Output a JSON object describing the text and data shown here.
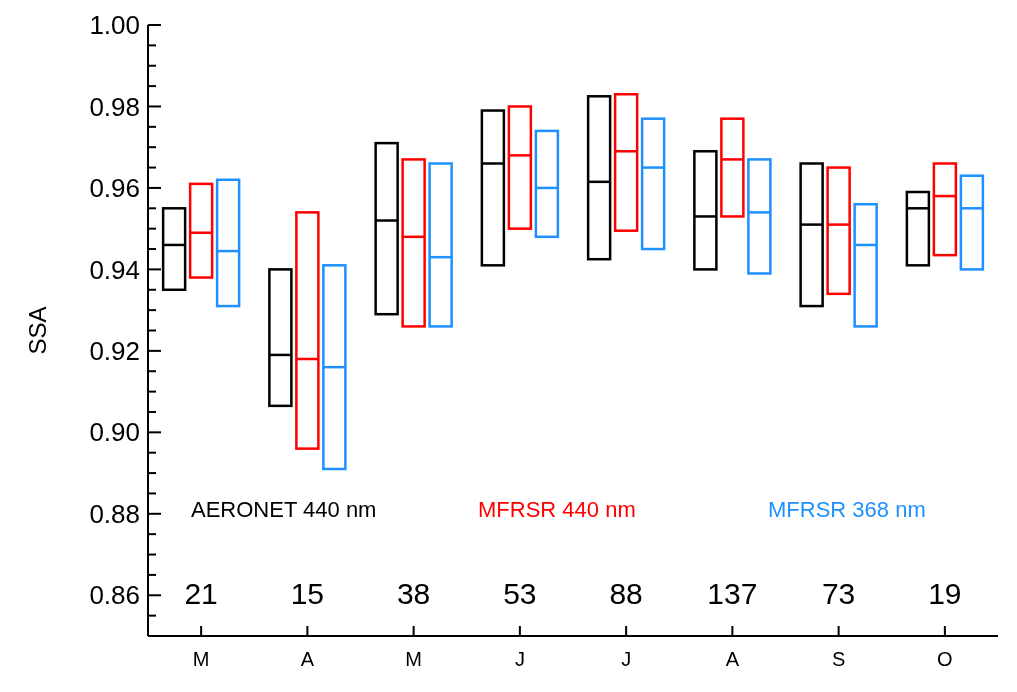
{
  "chart_data": {
    "type": "box",
    "ylabel": "SSA",
    "categories": [
      "M",
      "A",
      "M",
      "J",
      "J",
      "A",
      "S",
      "O"
    ],
    "ylim": [
      0.85,
      1.0
    ],
    "yticks": [
      {
        "value": 0.855,
        "label": null
      },
      {
        "value": 0.86,
        "label": "0.86"
      },
      {
        "value": 0.865,
        "label": null
      },
      {
        "value": 0.87,
        "label": null
      },
      {
        "value": 0.875,
        "label": null
      },
      {
        "value": 0.88,
        "label": "0.88"
      },
      {
        "value": 0.885,
        "label": null
      },
      {
        "value": 0.89,
        "label": null
      },
      {
        "value": 0.895,
        "label": null
      },
      {
        "value": 0.9,
        "label": "0.90"
      },
      {
        "value": 0.905,
        "label": null
      },
      {
        "value": 0.91,
        "label": null
      },
      {
        "value": 0.915,
        "label": null
      },
      {
        "value": 0.92,
        "label": "0.92"
      },
      {
        "value": 0.925,
        "label": null
      },
      {
        "value": 0.93,
        "label": null
      },
      {
        "value": 0.935,
        "label": null
      },
      {
        "value": 0.94,
        "label": "0.94"
      },
      {
        "value": 0.945,
        "label": null
      },
      {
        "value": 0.95,
        "label": null
      },
      {
        "value": 0.955,
        "label": null
      },
      {
        "value": 0.96,
        "label": "0.96"
      },
      {
        "value": 0.965,
        "label": null
      },
      {
        "value": 0.97,
        "label": null
      },
      {
        "value": 0.975,
        "label": null
      },
      {
        "value": 0.98,
        "label": "0.98"
      },
      {
        "value": 0.985,
        "label": null
      },
      {
        "value": 0.99,
        "label": null
      },
      {
        "value": 0.995,
        "label": null
      },
      {
        "value": 1.0,
        "label": "1.00"
      }
    ],
    "legend": "bottom",
    "series": [
      {
        "name": "AERONET 440 nm",
        "color": "#000000",
        "boxes": [
          {
            "low": 0.935,
            "q1": 0.935,
            "median": 0.946,
            "q3": 0.955,
            "high": 0.955
          },
          {
            "low": 0.9065,
            "q1": 0.9065,
            "median": 0.919,
            "q3": 0.94,
            "high": 0.94
          },
          {
            "low": 0.929,
            "q1": 0.929,
            "median": 0.952,
            "q3": 0.971,
            "high": 0.971
          },
          {
            "low": 0.941,
            "q1": 0.941,
            "median": 0.966,
            "q3": 0.979,
            "high": 0.979
          },
          {
            "low": 0.9425,
            "q1": 0.9425,
            "median": 0.9615,
            "q3": 0.9825,
            "high": 0.9825
          },
          {
            "low": 0.94,
            "q1": 0.94,
            "median": 0.953,
            "q3": 0.969,
            "high": 0.969
          },
          {
            "low": 0.931,
            "q1": 0.931,
            "median": 0.951,
            "q3": 0.966,
            "high": 0.966
          },
          {
            "low": 0.941,
            "q1": 0.941,
            "median": 0.955,
            "q3": 0.959,
            "high": 0.959
          }
        ]
      },
      {
        "name": "MFRSR 440 nm",
        "color": "#ff0000",
        "boxes": [
          {
            "low": 0.938,
            "q1": 0.938,
            "median": 0.949,
            "q3": 0.961,
            "high": 0.961
          },
          {
            "low": 0.896,
            "q1": 0.896,
            "median": 0.918,
            "q3": 0.954,
            "high": 0.954
          },
          {
            "low": 0.926,
            "q1": 0.926,
            "median": 0.948,
            "q3": 0.967,
            "high": 0.967
          },
          {
            "low": 0.95,
            "q1": 0.95,
            "median": 0.968,
            "q3": 0.98,
            "high": 0.98
          },
          {
            "low": 0.9495,
            "q1": 0.9495,
            "median": 0.969,
            "q3": 0.983,
            "high": 0.983
          },
          {
            "low": 0.953,
            "q1": 0.953,
            "median": 0.967,
            "q3": 0.977,
            "high": 0.977
          },
          {
            "low": 0.934,
            "q1": 0.934,
            "median": 0.951,
            "q3": 0.965,
            "high": 0.965
          },
          {
            "low": 0.9435,
            "q1": 0.9435,
            "median": 0.958,
            "q3": 0.966,
            "high": 0.966
          }
        ]
      },
      {
        "name": "MFRSR 368 nm",
        "color": "#1e90ff",
        "boxes": [
          {
            "low": 0.931,
            "q1": 0.931,
            "median": 0.9445,
            "q3": 0.962,
            "high": 0.962
          },
          {
            "low": 0.891,
            "q1": 0.891,
            "median": 0.916,
            "q3": 0.941,
            "high": 0.941
          },
          {
            "low": 0.926,
            "q1": 0.926,
            "median": 0.943,
            "q3": 0.966,
            "high": 0.966
          },
          {
            "low": 0.948,
            "q1": 0.948,
            "median": 0.96,
            "q3": 0.974,
            "high": 0.974
          },
          {
            "low": 0.945,
            "q1": 0.945,
            "median": 0.965,
            "q3": 0.977,
            "high": 0.977
          },
          {
            "low": 0.939,
            "q1": 0.939,
            "median": 0.954,
            "q3": 0.967,
            "high": 0.967
          },
          {
            "low": 0.926,
            "q1": 0.926,
            "median": 0.946,
            "q3": 0.956,
            "high": 0.956
          },
          {
            "low": 0.94,
            "q1": 0.94,
            "median": 0.955,
            "q3": 0.963,
            "high": 0.963
          }
        ]
      }
    ],
    "annotations": [
      "21",
      "15",
      "38",
      "53",
      "88",
      "137",
      "73",
      "19"
    ]
  }
}
